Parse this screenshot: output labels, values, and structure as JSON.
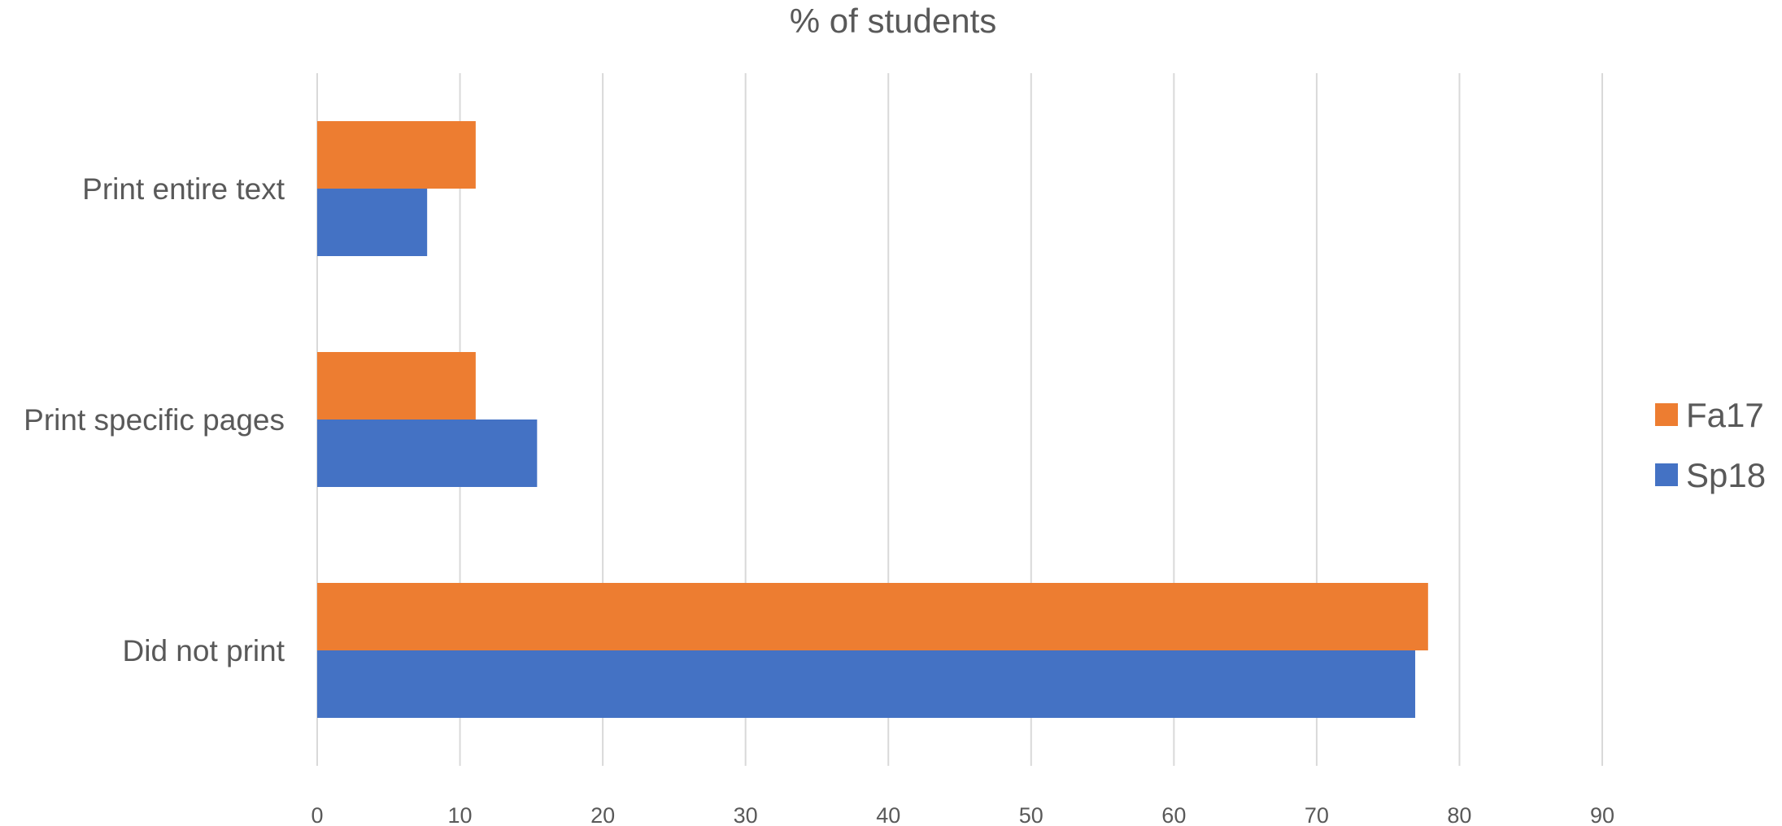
{
  "chart_data": {
    "type": "bar",
    "orientation": "horizontal",
    "title": "% of students",
    "categories": [
      "Print entire text",
      "Print specific pages",
      "Did not print"
    ],
    "series": [
      {
        "name": "Fa17",
        "color": "#ED7D31",
        "values": [
          11.1,
          11.1,
          77.8
        ]
      },
      {
        "name": "Sp18",
        "color": "#4472C4",
        "values": [
          7.7,
          15.4,
          76.9
        ]
      }
    ],
    "xlim": [
      0,
      90
    ],
    "xticks": [
      0,
      10,
      20,
      30,
      40,
      50,
      60,
      70,
      80,
      90
    ],
    "grid": true,
    "gridlines_color": "#D9D9D9",
    "text_color": "#595959",
    "legend": {
      "position": "right",
      "order": [
        "Fa17",
        "Sp18"
      ]
    }
  }
}
